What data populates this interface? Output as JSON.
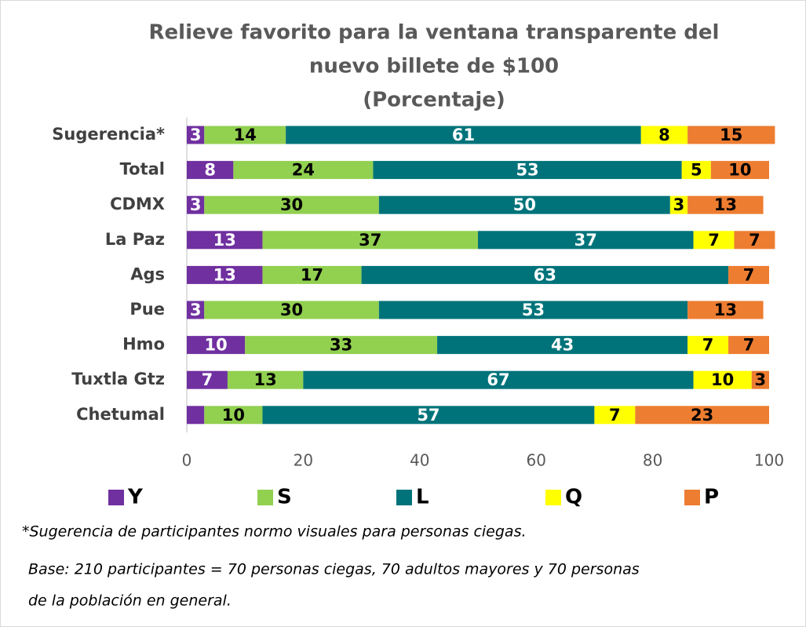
{
  "chart_data": {
    "type": "stacked-bar-horizontal",
    "title": [
      "Relieve favorito para la ventana transparente del",
      "nuevo billete de $100",
      "(Porcentaje)"
    ],
    "categories": [
      "Sugerencia*",
      "Total",
      "CDMX",
      "La Paz",
      "Ags",
      "Pue",
      "Hmo",
      "Tuxtla Gtz",
      "Chetumal"
    ],
    "series": [
      {
        "name": "Y",
        "color": "#7030a0",
        "label_color": "#ffffff",
        "values": [
          3,
          8,
          3,
          13,
          13,
          3,
          10,
          7,
          3
        ],
        "value_labels": [
          "3",
          "8",
          "3",
          "13",
          "13",
          "3",
          "10",
          "7",
          null
        ]
      },
      {
        "name": "S",
        "color": "#92d050",
        "label_color": "#000000",
        "values": [
          14,
          24,
          30,
          37,
          17,
          30,
          33,
          13,
          10
        ]
      },
      {
        "name": "L",
        "color": "#00737a",
        "label_color": "#ffffff",
        "values": [
          61,
          53,
          50,
          37,
          63,
          53,
          43,
          67,
          57
        ]
      },
      {
        "name": "Q",
        "color": "#ffff00",
        "label_color": "#000000",
        "values": [
          8,
          5,
          3,
          7,
          null,
          null,
          7,
          10,
          7
        ]
      },
      {
        "name": "P",
        "color": "#ed7d31",
        "label_color": "#000000",
        "values": [
          15,
          10,
          13,
          7,
          7,
          13,
          7,
          3,
          23
        ]
      }
    ],
    "xlim": [
      0,
      100
    ],
    "xticks": [
      0,
      20,
      40,
      60,
      80,
      100
    ],
    "legend": "bottom",
    "notes": [
      "*Sugerencia de participantes normo visuales para personas ciegas.",
      "Base: 210 participantes = 70 personas ciegas, 70 adultos mayores y 70 personas",
      "de la población en general."
    ]
  }
}
